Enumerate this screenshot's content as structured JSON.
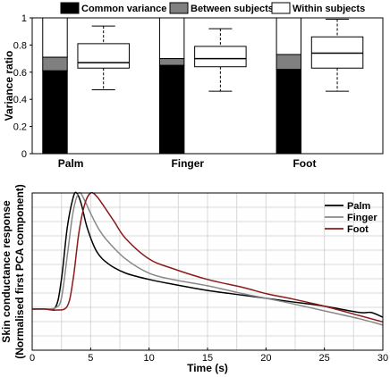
{
  "chart_data": [
    {
      "type": "bar",
      "ylabel": "Variance ratio",
      "ylim": [
        0,
        1
      ],
      "yticks": [
        0,
        0.2,
        0.4,
        0.6,
        0.8,
        1
      ],
      "ytick_labels": [
        "0",
        "0.2",
        "0.4",
        "0.6",
        "0.8",
        "1"
      ],
      "categories": [
        "Palm",
        "Finger",
        "Foot"
      ],
      "legend": {
        "placement": "top",
        "entries": [
          "Common variance",
          "Between subjects",
          "Within subjects"
        ]
      },
      "colors": {
        "common": "#000000",
        "between": "#808080",
        "within": "#ffffff"
      },
      "stacks": [
        {
          "category": "Palm",
          "common": 0.61,
          "between": 0.1,
          "within": 0.29
        },
        {
          "category": "Finger",
          "common": 0.65,
          "between": 0.05,
          "within": 0.3
        },
        {
          "category": "Foot",
          "common": 0.62,
          "between": 0.11,
          "within": 0.27
        }
      ],
      "boxplots": [
        {
          "category": "Palm",
          "min": 0.47,
          "q1": 0.63,
          "median": 0.67,
          "q3": 0.81,
          "max": 0.94
        },
        {
          "category": "Finger",
          "min": 0.46,
          "q1": 0.64,
          "median": 0.7,
          "q3": 0.79,
          "max": 0.92
        },
        {
          "category": "Foot",
          "min": 0.46,
          "q1": 0.63,
          "median": 0.74,
          "q3": 0.86,
          "max": 0.99
        }
      ]
    },
    {
      "type": "line",
      "xlabel": "Time (s)",
      "ylabel_line1": "Skin conductance response",
      "ylabel_line2": "(Normalised first PCA component)",
      "xlim": [
        0,
        30
      ],
      "ylim": [
        0,
        1
      ],
      "xticks": [
        0,
        5,
        10,
        15,
        20,
        25,
        30
      ],
      "xtick_labels": [
        "0",
        "5",
        "10",
        "15",
        "20",
        "25",
        "30"
      ],
      "grid": true,
      "legend": {
        "placement": "top-right"
      },
      "series": [
        {
          "name": "Palm",
          "color": "#000000",
          "x": [
            0,
            1,
            2,
            2.5,
            3,
            3.5,
            3.8,
            4.2,
            4.7,
            5.5,
            6.5,
            8,
            10,
            12,
            15,
            18,
            20,
            22,
            25,
            28,
            29,
            30
          ],
          "y": [
            0.262,
            0.262,
            0.275,
            0.45,
            0.78,
            0.97,
            1.0,
            0.93,
            0.78,
            0.63,
            0.55,
            0.49,
            0.45,
            0.42,
            0.38,
            0.35,
            0.33,
            0.31,
            0.28,
            0.24,
            0.24,
            0.21
          ]
        },
        {
          "name": "Finger",
          "color": "#888888",
          "x": [
            0,
            1,
            2,
            2.5,
            3,
            3.5,
            4,
            4.5,
            5,
            5.7,
            6.5,
            8,
            10,
            12,
            15,
            18,
            20,
            22,
            25,
            28,
            30
          ],
          "y": [
            0.262,
            0.262,
            0.27,
            0.33,
            0.6,
            0.88,
            1.0,
            0.95,
            0.87,
            0.77,
            0.69,
            0.58,
            0.49,
            0.45,
            0.41,
            0.36,
            0.33,
            0.3,
            0.25,
            0.2,
            0.16
          ]
        },
        {
          "name": "Foot",
          "color": "#8b1a1a",
          "x": [
            0,
            1,
            2,
            3,
            3.5,
            4,
            4.5,
            5,
            5.5,
            6,
            7,
            8,
            10,
            12,
            15,
            18,
            20,
            22,
            25,
            28,
            30
          ],
          "y": [
            0.262,
            0.262,
            0.255,
            0.28,
            0.45,
            0.75,
            0.93,
            1.0,
            0.98,
            0.93,
            0.82,
            0.71,
            0.58,
            0.52,
            0.45,
            0.4,
            0.36,
            0.33,
            0.28,
            0.22,
            0.18
          ]
        }
      ]
    }
  ]
}
